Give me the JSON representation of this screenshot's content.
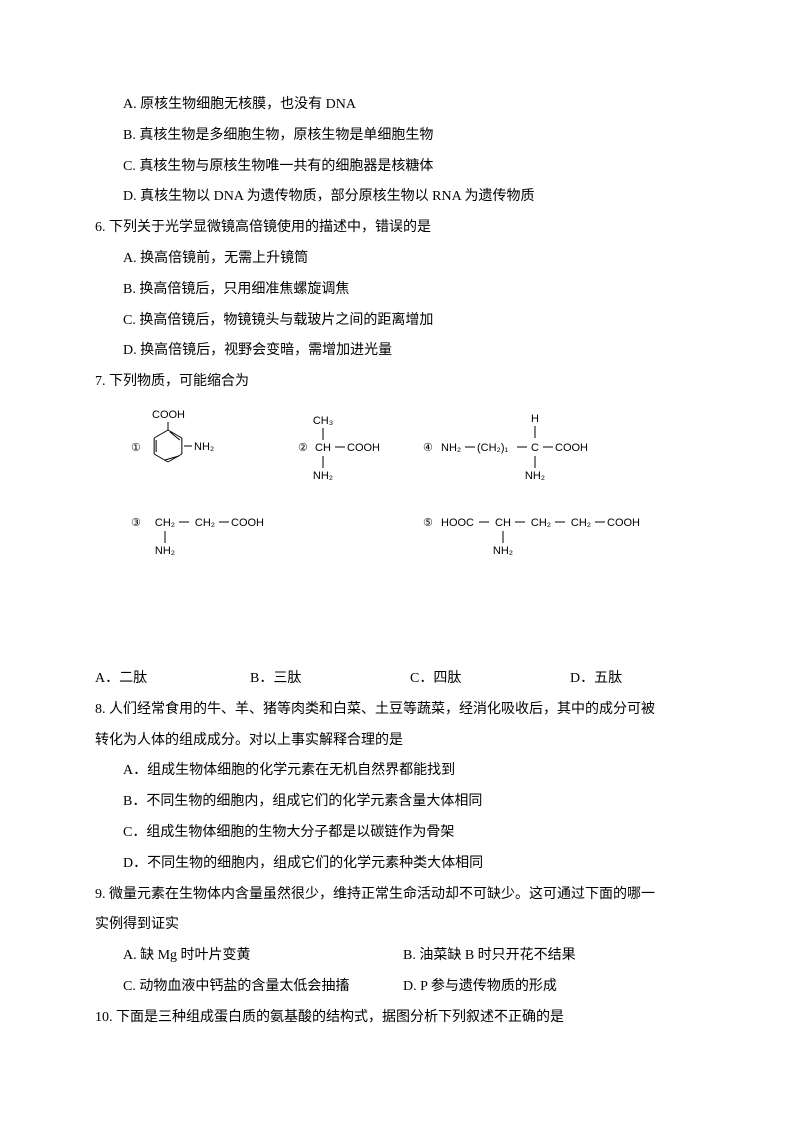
{
  "q5_partial": {
    "opt_a": "A. 原核生物细胞无核膜，也没有 DNA",
    "opt_b": "B. 真核生物是多细胞生物，原核生物是单细胞生物",
    "opt_c": "C.  真核生物与原核生物唯一共有的细胞器是核糖体",
    "opt_d": "D.  真核生物以 DNA 为遗传物质，部分原核生物以 RNA 为遗传物质"
  },
  "q6": {
    "stem": "6. 下列关于光学显微镜高倍镜使用的描述中，错误的是",
    "opt_a": "A. 换高倍镜前，无需上升镜筒",
    "opt_b": "B. 换高倍镜后，只用细准焦螺旋调焦",
    "opt_c": "C. 换高倍镜后，物镜镜头与载玻片之间的距离增加",
    "opt_d": "D. 换高倍镜后，视野会变暗，需增加进光量"
  },
  "q7": {
    "stem": "7.  下列物质，可能缩合为",
    "opt_a": "A．二肽",
    "opt_b": "B．三肽",
    "opt_c": "C．四肽",
    "opt_d": "D．五肽",
    "chem": {
      "labels": {
        "l1": "①",
        "l2": "②",
        "l3": "③",
        "l4": "④",
        "l5": "⑤"
      },
      "text": {
        "cooh": "COOH",
        "nh2": "NH₂",
        "ch3": "CH₃",
        "ch": "CH",
        "ch2": "CH₂",
        "c": "C",
        "h": "H",
        "hooc": "HOOC",
        "ch2_1": "(CH₂)₁"
      },
      "font_size": 11,
      "color": "#000000"
    }
  },
  "q8": {
    "stem1": "8. 人们经常食用的牛、羊、猪等肉类和白菜、土豆等蔬菜，经消化吸收后，其中的成分可被",
    "stem2": "转化为人体的组成成分。对以上事实解释合理的是",
    "opt_a": "A．组成生物体细胞的化学元素在无机自然界都能找到",
    "opt_b": "B．不同生物的细胞内，组成它们的化学元素含量大体相同",
    "opt_c": "C．组成生物体细胞的生物大分子都是以碳链作为骨架",
    "opt_d": "D．不同生物的细胞内，组成它们的化学元素种类大体相同"
  },
  "q9": {
    "stem1": "9. 微量元素在生物体内含量虽然很少，维持正常生命活动却不可缺少。这可通过下面的哪一",
    "stem2": "实例得到证实",
    "opt_a": "A. 缺 Mg 时叶片变黄",
    "opt_b": "B. 油菜缺 B 时只开花不结果",
    "opt_c": "C. 动物血液中钙盐的含量太低会抽搐",
    "opt_d": "D. P 参与遗传物质的形成"
  },
  "q10": {
    "stem": "10.  下面是三种组成蛋白质的氨基酸的结构式，据图分析下列叙述不正确的是"
  }
}
